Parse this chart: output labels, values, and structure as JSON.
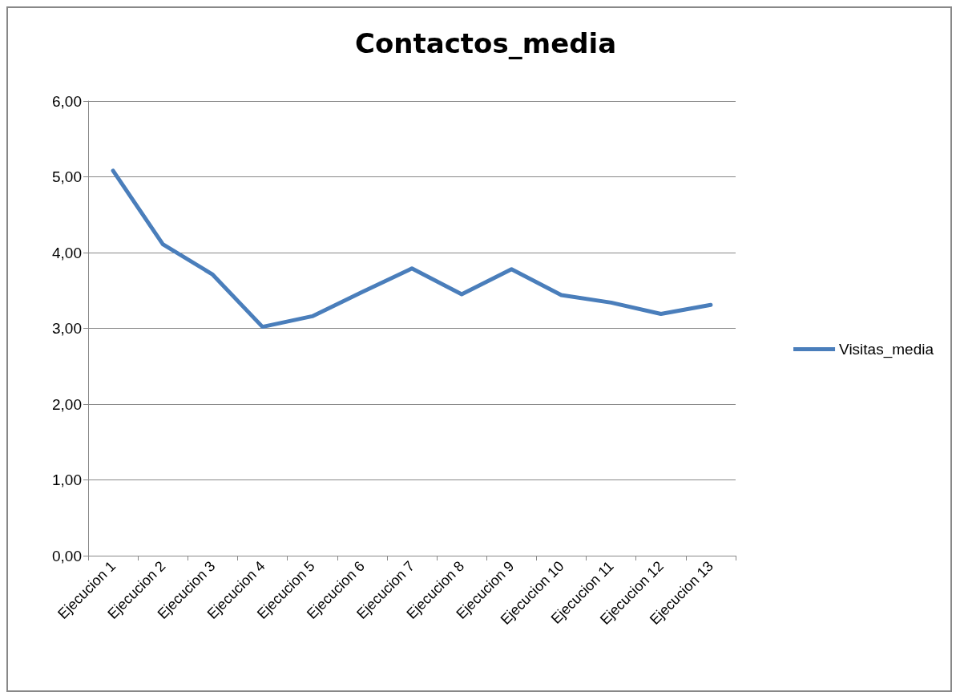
{
  "chart_data": {
    "type": "line",
    "title": "Contactos_media",
    "categories": [
      "Ejecucion 1",
      "Ejecucion 2",
      "Ejecucion 3",
      "Ejecucion 4",
      "Ejecucion 5",
      "Ejecucion 6",
      "Ejecucion 7",
      "Ejecucion 8",
      "Ejecucion 9",
      "Ejecucion 10",
      "Ejecucion 11",
      "Ejecucion 12",
      "Ejecucion 13"
    ],
    "series": [
      {
        "name": "Visitas_media",
        "color": "#4a7ebb",
        "values": [
          5.08,
          4.11,
          3.71,
          3.02,
          3.16,
          3.48,
          3.79,
          3.45,
          3.78,
          3.44,
          3.34,
          3.19,
          3.31
        ]
      }
    ],
    "ylim": [
      0,
      6
    ],
    "yticks": [
      {
        "value": 0,
        "label": "0,00"
      },
      {
        "value": 1,
        "label": "1,00"
      },
      {
        "value": 2,
        "label": "2,00"
      },
      {
        "value": 3,
        "label": "3,00"
      },
      {
        "value": 4,
        "label": "4,00"
      },
      {
        "value": 5,
        "label": "5,00"
      },
      {
        "value": 6,
        "label": "6,00"
      }
    ],
    "grid": "y",
    "legend": "right",
    "marker": "none",
    "line_style": "solid"
  }
}
